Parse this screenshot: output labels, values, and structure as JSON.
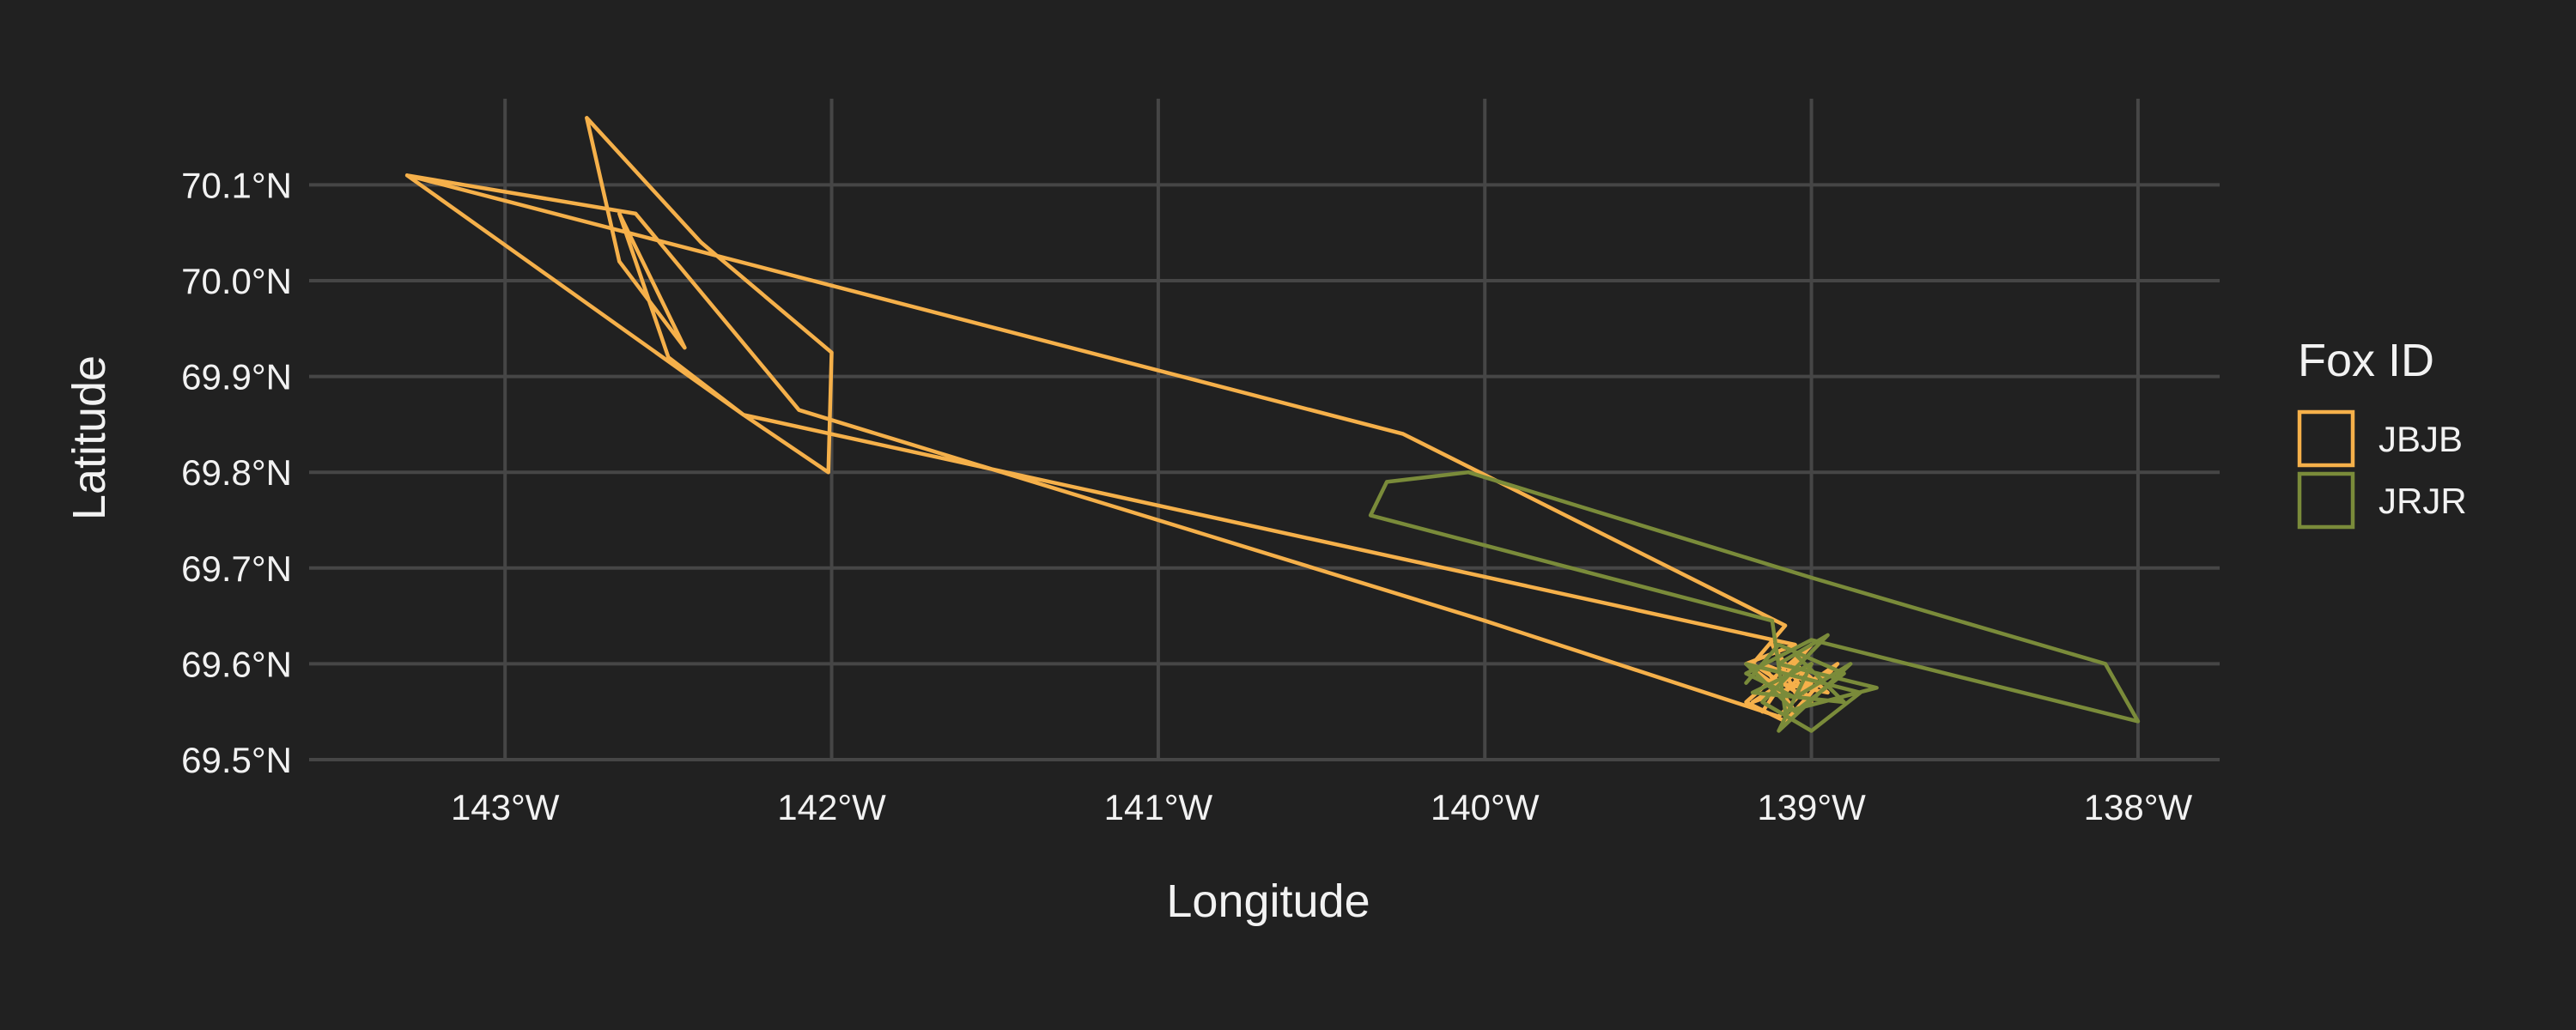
{
  "chart_data": {
    "type": "line",
    "title": "",
    "xlabel": "Longitude",
    "ylabel": "Latitude",
    "xlim": [
      -143.6,
      -137.75
    ],
    "ylim": [
      69.5,
      70.19
    ],
    "x_ticks": [
      {
        "value": -143,
        "label": "143°W"
      },
      {
        "value": -142,
        "label": "142°W"
      },
      {
        "value": -141,
        "label": "141°W"
      },
      {
        "value": -140,
        "label": "140°W"
      },
      {
        "value": -139,
        "label": "139°W"
      },
      {
        "value": -138,
        "label": "138°W"
      }
    ],
    "y_ticks": [
      {
        "value": 69.5,
        "label": "69.5°N"
      },
      {
        "value": 69.6,
        "label": "69.6°N"
      },
      {
        "value": 69.7,
        "label": "69.7°N"
      },
      {
        "value": 69.8,
        "label": "69.8°N"
      },
      {
        "value": 69.9,
        "label": "69.9°N"
      },
      {
        "value": 70.0,
        "label": "70.0°N"
      },
      {
        "value": 70.1,
        "label": "70.1°N"
      }
    ],
    "grid": true,
    "legend": {
      "title": "Fox ID",
      "position": "right"
    },
    "series": [
      {
        "name": "JBJB",
        "color": "#f5b04a",
        "points": [
          [
            -139.15,
            69.55
          ],
          [
            -139.05,
            69.6
          ],
          [
            -138.95,
            69.57
          ],
          [
            -139.1,
            69.58
          ],
          [
            -139.0,
            69.62
          ],
          [
            -139.2,
            69.56
          ],
          [
            -139.08,
            69.54
          ],
          [
            -138.92,
            69.6
          ],
          [
            -139.05,
            69.57
          ],
          [
            -139.12,
            69.62
          ],
          [
            -139.0,
            69.56
          ],
          [
            -139.18,
            69.6
          ],
          [
            -139.08,
            69.64
          ],
          [
            -140.25,
            69.84
          ],
          [
            -143.3,
            70.11
          ],
          [
            -142.6,
            70.07
          ],
          [
            -142.1,
            69.865
          ],
          [
            -141.0,
            69.75
          ],
          [
            -140.0,
            69.645
          ],
          [
            -139.1,
            69.545
          ],
          [
            -139.0,
            69.58
          ],
          [
            -139.15,
            69.6
          ],
          [
            -139.05,
            69.55
          ],
          [
            -138.95,
            69.59
          ],
          [
            -139.1,
            69.57
          ],
          [
            -139.18,
            69.56
          ],
          [
            -139.0,
            69.6
          ]
        ],
        "tail": [
          [
            -139.08,
            69.57
          ],
          [
            -139.2,
            69.6
          ],
          [
            -139.05,
            69.62
          ],
          [
            -142.27,
            69.86
          ],
          [
            -142.5,
            69.92
          ],
          [
            -142.65,
            70.07
          ],
          [
            -142.45,
            69.93
          ],
          [
            -142.65,
            70.02
          ],
          [
            -142.75,
            70.17
          ],
          [
            -142.4,
            70.04
          ],
          [
            -142.0,
            69.925
          ],
          [
            -142.01,
            69.8
          ],
          [
            -142.27,
            69.86
          ],
          [
            -143.3,
            70.11
          ]
        ]
      },
      {
        "name": "JRJR",
        "color": "#7a8b3a",
        "points": [
          [
            -139.2,
            69.58
          ],
          [
            -139.1,
            69.62
          ],
          [
            -138.9,
            69.59
          ],
          [
            -139.05,
            69.55
          ],
          [
            -139.2,
            69.6
          ],
          [
            -138.85,
            69.57
          ],
          [
            -139.0,
            69.53
          ],
          [
            -139.15,
            69.56
          ],
          [
            -138.95,
            69.63
          ],
          [
            -139.1,
            69.6
          ],
          [
            -138.8,
            69.575
          ],
          [
            -139.08,
            69.55
          ],
          [
            -139.12,
            69.645
          ],
          [
            -140.35,
            69.755
          ],
          [
            -140.3,
            69.79
          ],
          [
            -140.05,
            69.8
          ],
          [
            -139.0,
            69.69
          ],
          [
            -138.1,
            69.6
          ],
          [
            -138.0,
            69.54
          ],
          [
            -139.0,
            69.625
          ],
          [
            -139.2,
            69.59
          ],
          [
            -139.05,
            69.565
          ],
          [
            -138.88,
            69.6
          ],
          [
            -139.1,
            69.53
          ],
          [
            -139.0,
            69.6
          ],
          [
            -139.18,
            69.57
          ],
          [
            -138.9,
            69.56
          ],
          [
            -139.05,
            69.61
          ]
        ]
      }
    ]
  }
}
